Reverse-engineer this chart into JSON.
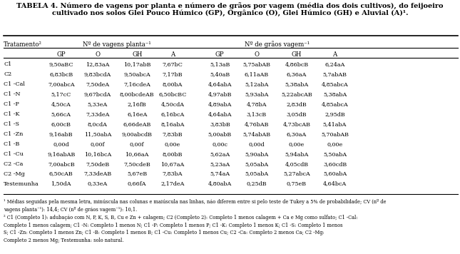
{
  "title_line1": "TABELA 4. Número de vagens por planta e número de grãos por vagem (média dos dois cultivos), do feijoeiro",
  "title_line2": "cultivado nos solos Glei Pouco Húmico (GP), Orgânico (O), Glei Húmico (GH) e Aluvial (A)¹.",
  "col_header1": "Nº de vagens planta⁻¹",
  "col_header2": "Nº de grãos vagem⁻¹",
  "col_header_sub": [
    "GP",
    "O",
    "GH",
    "A"
  ],
  "row_header": "Tratamento²",
  "rows": [
    [
      "C1",
      "9,50aBC",
      "12,83aA",
      "10,17abB",
      "7,67bC",
      "5,13aB",
      "5,75abAB",
      "4,86bcB",
      "6,24aA"
    ],
    [
      "C2",
      "6,83bcB",
      "9,83bcdA",
      "9,50abcA",
      "7,17bB",
      "5,40aB",
      "6,11aAB",
      "6,36aA",
      "5,7abAB"
    ],
    [
      "C1 -Cal",
      "7,00abcA",
      "7,50deA",
      "7,16cdeA",
      "8,00bA",
      "4,64abA",
      "5,12abA",
      "5,38abA",
      "4,85abcA"
    ],
    [
      "C1 -N",
      "5,17cC",
      "9,67bcdA",
      "8,00bcdeAB",
      "6,50bcBC",
      "4,97abB",
      "5,93abA",
      "5,22abcAB",
      "5,38abA"
    ],
    [
      "C1 -P",
      "4,50cA",
      "5,33eA",
      "2,16fB",
      "4,50cdA",
      "4,89abA",
      "4,78bA",
      "2,83dB",
      "4,85abcA"
    ],
    [
      "C1 -K",
      "5,66cA",
      "7,33deA",
      "6,16eA",
      "6,16bcA",
      "4,64abA",
      "3,13cB",
      "3,05dB",
      "2,95dB"
    ],
    [
      "C1 -S",
      "6,00cB",
      "8,0cdA",
      "6,66deAB",
      "8,16abA",
      "3,83bB",
      "4,76bAB",
      "4,73bcAB",
      "5,41abA"
    ],
    [
      "C1 -Zn",
      "9,16abB",
      "11,50abA",
      "9,00abcdB",
      "7,83bB",
      "5,00abB",
      "5,74abAB",
      "6,30aA",
      "5,70abAB"
    ],
    [
      "C1 -B",
      "0,00d",
      "0,00f",
      "0,00f",
      "0,00e",
      "0,00c",
      "0,00d",
      "0,00e",
      "0,00e"
    ],
    [
      "C1 -Cu",
      "9,16abAB",
      "10,16bcA",
      "10,66aA",
      "8,00bB",
      "5,62aA",
      "5,90abA",
      "5,94abA",
      "5,50abA"
    ],
    [
      "C2 -Ca",
      "7,00abcB",
      "7,50deB",
      "7,50cdeB",
      "10,67aA",
      "5,23aA",
      "5,05abA",
      "4,05cdB",
      "3,60cdB"
    ],
    [
      "C2 -Mg",
      "6,50cAB",
      "7,33deAB",
      "5,67eB",
      "7,83bA",
      "5,74aA",
      "5,05abA",
      "5,27abcA",
      "5,60abA"
    ],
    [
      "Testemunha",
      "1,50dA",
      "0,33eA",
      "0,66fA",
      "2,17deA",
      "4,80abA",
      "0,25dB",
      "0,75eB",
      "4,64bcA"
    ]
  ],
  "footnote1": "¹ Médias seguidas pela mesma letra, minúscula nas colunas e maiúscula nas linhas, não diferem entre si pelo teste de Tukey a 5% de probabilidade; CV (nº de",
  "footnote1b": "vagens planta⁻¹): 14,4; CV (nº de grãos vagem⁻¹): 10,1.",
  "footnote2": "² C1 (Completo 1): adubação com N, P, K, S, B, Cu e Zn + calagem; C2 (Completo 2): Completo 1 menos calagem + Ca e Mg como sulfato; C1 -Cal:",
  "footnote2b": "Completo 1 menos calagem; C1 -N: Completo 1 menos N; C1 -P: Completo 1 menos P; C1 -K: Completo 1 menos K; C1 -S: Completo 1 menos",
  "footnote2c": "S; C1 -Zn: Completo 1 menos Zn; C1 -B: Completo 1 menos B; C1 -Cu: Completo 1 menos Cu; C2 -Ca: Completo 2 menos Ca; C2 -Mg:",
  "footnote2d": "Completo 2 menos Mg; Testemunha: solo natural."
}
